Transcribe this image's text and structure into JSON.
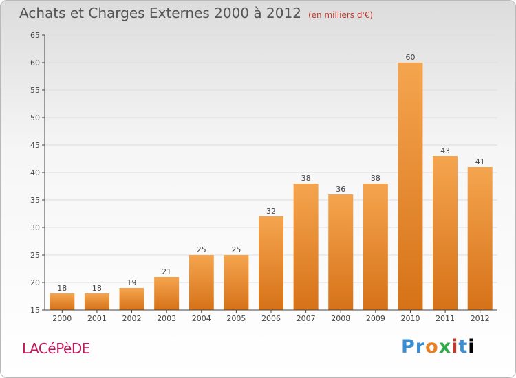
{
  "header": {
    "title": "Achats et Charges Externes 2000 à 2012",
    "unit": "(en milliers d'€)"
  },
  "footer": {
    "place": "LACéPèDE",
    "brand": "Proxiti"
  },
  "colors": {
    "bar_light": "#f5a54f",
    "bar_dark": "#d67218",
    "grid": "#dddddd",
    "axis": "#444444"
  },
  "chart_data": {
    "type": "bar",
    "title": "Achats et Charges Externes 2000 à 2012",
    "subtitle": "(en milliers d'€)",
    "xlabel": "",
    "ylabel": "",
    "categories": [
      "2000",
      "2001",
      "2002",
      "2003",
      "2004",
      "2005",
      "2006",
      "2007",
      "2008",
      "2009",
      "2010",
      "2011",
      "2012"
    ],
    "values": [
      18,
      18,
      19,
      21,
      25,
      25,
      32,
      38,
      36,
      38,
      60,
      43,
      41
    ],
    "ylim": [
      15,
      65
    ],
    "yticks": [
      15,
      20,
      25,
      30,
      35,
      40,
      45,
      50,
      55,
      60,
      65
    ],
    "grid": true
  }
}
